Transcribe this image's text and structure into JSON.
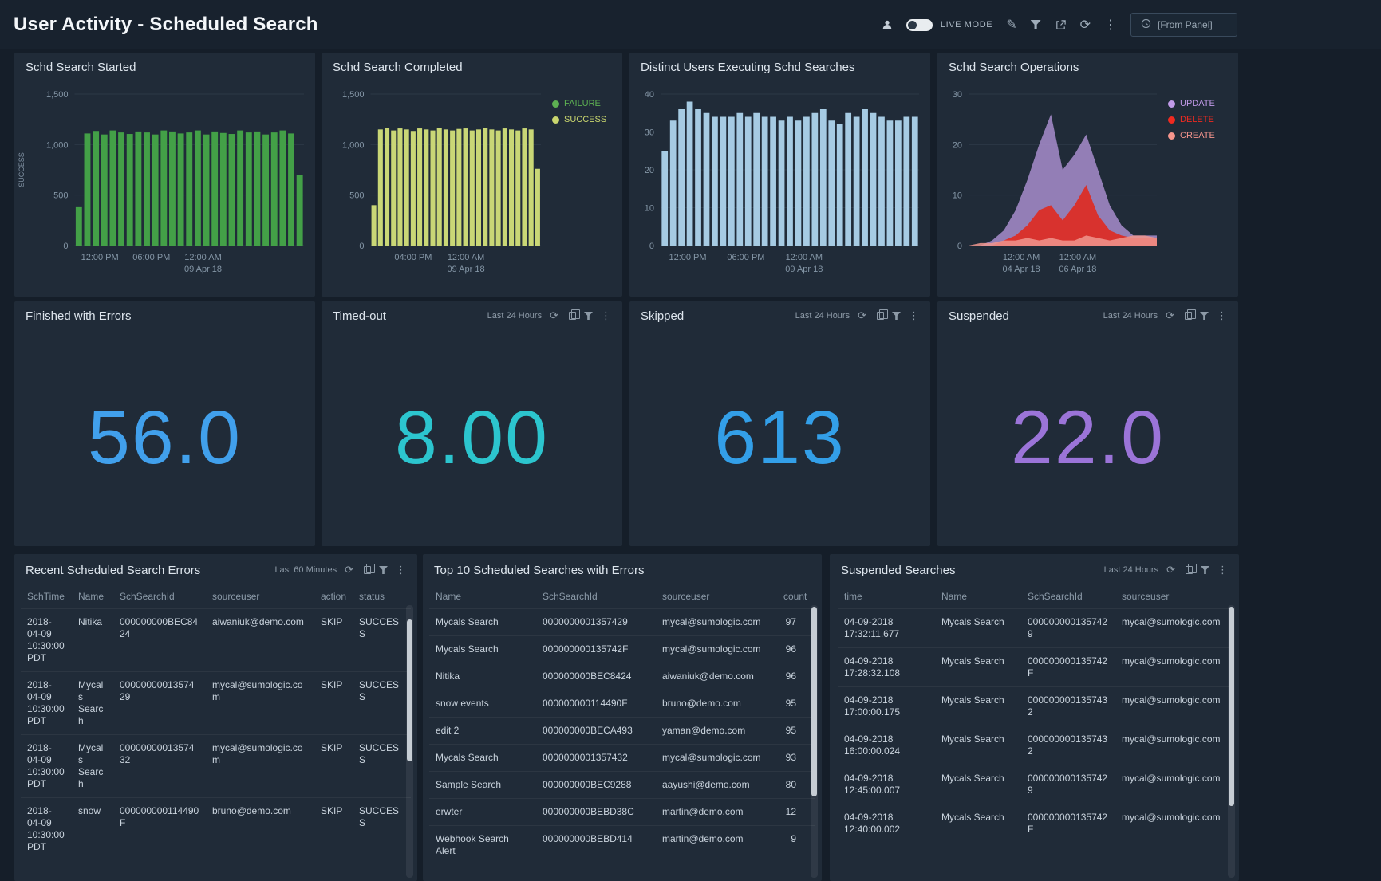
{
  "header": {
    "title": "User Activity - Scheduled Search",
    "live_mode_label": "LIVE MODE",
    "panel_selector": "[From Panel]"
  },
  "stats": [
    {
      "title": "Finished with Errors",
      "value": "56.0",
      "color": "#41a0ec"
    },
    {
      "title": "Timed-out",
      "value": "8.00",
      "color": "#2cc5ce",
      "range": "Last 24 Hours"
    },
    {
      "title": "Skipped",
      "value": "613",
      "color": "#339fe8",
      "range": "Last 24 Hours"
    },
    {
      "title": "Suspended",
      "value": "22.0",
      "color": "#9b74d8",
      "range": "Last 24 Hours"
    }
  ],
  "chart_data": [
    {
      "type": "bar",
      "title": "Schd Search Started",
      "ylabel": "SUCCESS",
      "ylim": [
        0,
        1500
      ],
      "yticks": [
        0,
        500,
        1000,
        1500
      ],
      "ytick_labels": [
        "0",
        "500",
        "1,000",
        "1,500"
      ],
      "bar_color": "#43a047",
      "values": [
        380,
        1110,
        1135,
        1100,
        1140,
        1120,
        1105,
        1130,
        1120,
        1100,
        1140,
        1130,
        1110,
        1120,
        1140,
        1100,
        1130,
        1115,
        1105,
        1140,
        1120,
        1130,
        1100,
        1120,
        1140,
        1110,
        700
      ],
      "xticks": [
        {
          "label": "12:00 PM",
          "pos": 0.11
        },
        {
          "label": "06:00 PM",
          "pos": 0.335
        },
        {
          "label": "12:00 AM",
          "sublabel": "09 Apr 18",
          "pos": 0.56
        }
      ]
    },
    {
      "type": "bar",
      "title": "Schd Search Completed",
      "ylim": [
        0,
        1500
      ],
      "yticks": [
        0,
        500,
        1000,
        1500
      ],
      "ytick_labels": [
        "0",
        "500",
        "1,000",
        "1,500"
      ],
      "bar_color": "#c9d776",
      "values": [
        400,
        1150,
        1165,
        1140,
        1160,
        1150,
        1135,
        1160,
        1150,
        1140,
        1165,
        1150,
        1140,
        1155,
        1160,
        1140,
        1150,
        1165,
        1150,
        1140,
        1160,
        1150,
        1140,
        1160,
        1150,
        760
      ],
      "legend": [
        {
          "label": "FAILURE",
          "color": "#5db052"
        },
        {
          "label": "SUCCESS",
          "color": "#c9d66e"
        }
      ],
      "xticks": [
        {
          "label": "04:00 PM",
          "pos": 0.25
        },
        {
          "label": "12:00 AM",
          "sublabel": "09 Apr 18",
          "pos": 0.56
        }
      ]
    },
    {
      "type": "bar",
      "title": "Distinct Users Executing Schd Searches",
      "ylim": [
        0,
        40
      ],
      "yticks": [
        0,
        10,
        20,
        30,
        40
      ],
      "ytick_labels": [
        "0",
        "10",
        "20",
        "30",
        "40"
      ],
      "bar_color": "#a6cbe3",
      "values": [
        25,
        33,
        36,
        38,
        36,
        35,
        34,
        34,
        34,
        35,
        34,
        35,
        34,
        34,
        33,
        34,
        33,
        34,
        35,
        36,
        33,
        32,
        35,
        34,
        36,
        35,
        34,
        33,
        33,
        34,
        34
      ],
      "xticks": [
        {
          "label": "12:00 PM",
          "pos": 0.105
        },
        {
          "label": "06:00 PM",
          "pos": 0.33
        },
        {
          "label": "12:00 AM",
          "sublabel": "09 Apr 18",
          "pos": 0.555
        }
      ]
    },
    {
      "type": "area",
      "title": "Schd Search Operations",
      "ylim": [
        0,
        30
      ],
      "yticks": [
        0,
        10,
        20,
        30
      ],
      "ytick_labels": [
        "0",
        "10",
        "20",
        "30"
      ],
      "legend": [
        {
          "label": "UPDATE",
          "color": "#c09ae8"
        },
        {
          "label": "DELETE",
          "color": "#f02a20"
        },
        {
          "label": "CREATE",
          "color": "#f5958d"
        }
      ],
      "series": [
        {
          "name": "UPDATE",
          "color": "#b094d6",
          "opacity": 0.8,
          "values": [
            0,
            0,
            1,
            3,
            7,
            13,
            20,
            26,
            15,
            18,
            22,
            15,
            8,
            4,
            2,
            2,
            2
          ]
        },
        {
          "name": "DELETE",
          "color": "#e02a1f",
          "opacity": 0.9,
          "values": [
            0,
            0,
            0,
            1,
            2,
            4,
            7,
            8,
            5,
            8,
            12,
            6,
            3,
            2,
            1.5,
            1.5,
            1.5
          ]
        },
        {
          "name": "CREATE",
          "color": "#f0968e",
          "opacity": 0.85,
          "values": [
            0,
            0.5,
            0.5,
            1,
            1,
            1.5,
            1,
            1.5,
            1,
            1,
            2,
            1.5,
            1,
            1.5,
            2,
            2,
            1.5
          ]
        }
      ],
      "xticks": [
        {
          "label": "12:00 AM",
          "sublabel": "04 Apr 18",
          "pos": 0.28
        },
        {
          "label": "12:00 AM",
          "sublabel": "06 Apr 18",
          "pos": 0.58
        }
      ]
    }
  ],
  "tables": [
    {
      "title": "Recent Scheduled Search Errors",
      "range": "Last 60 Minutes",
      "columns": [
        "SchTime",
        "Name",
        "SchSearchId",
        "sourceuser",
        "action",
        "status"
      ],
      "rows": [
        [
          "2018-04-09 10:30:00 PDT",
          "Nitika",
          "000000000BEC8424",
          "aiwaniuk@demo.com",
          "SKIP",
          "SUCCESS"
        ],
        [
          "2018-04-09 10:30:00 PDT",
          "Mycals Search",
          "0000000001357429",
          "mycal@sumologic.com",
          "SKIP",
          "SUCCESS"
        ],
        [
          "2018-04-09 10:30:00 PDT",
          "Mycals Search",
          "0000000001357432",
          "mycal@sumologic.com",
          "SKIP",
          "SUCCESS"
        ],
        [
          "2018-04-09 10:30:00 PDT",
          "snow",
          "000000000114490F",
          "bruno@demo.com",
          "SKIP",
          "SUCCESS"
        ]
      ]
    },
    {
      "title": "Top 10 Scheduled Searches with Errors",
      "columns": [
        "Name",
        "SchSearchId",
        "sourceuser",
        "count"
      ],
      "rows": [
        [
          "Mycals Search",
          "0000000001357429",
          "mycal@sumologic.com",
          97
        ],
        [
          "Mycals Search",
          "000000000135742F",
          "mycal@sumologic.com",
          96
        ],
        [
          "Nitika",
          "000000000BEC8424",
          "aiwaniuk@demo.com",
          96
        ],
        [
          "snow events",
          "000000000114490F",
          "bruno@demo.com",
          95
        ],
        [
          "edit 2",
          "000000000BECA493",
          "yaman@demo.com",
          95
        ],
        [
          "Mycals Search",
          "0000000001357432",
          "mycal@sumologic.com",
          93
        ],
        [
          "Sample Search",
          "000000000BEC9288",
          "aayushi@demo.com",
          80
        ],
        [
          "erwter",
          "000000000BEBD38C",
          "martin@demo.com",
          12
        ],
        [
          "Webhook Search Alert",
          "000000000BEBD414",
          "martin@demo.com",
          9
        ]
      ]
    },
    {
      "title": "Suspended Searches",
      "range": "Last 24 Hours",
      "columns": [
        "time",
        "Name",
        "SchSearchId",
        "sourceuser"
      ],
      "rows": [
        [
          "04-09-2018 17:32:11.677",
          "Mycals Search",
          "0000000001357429",
          "mycal@sumologic.com"
        ],
        [
          "04-09-2018 17:28:32.108",
          "Mycals Search",
          "000000000135742F",
          "mycal@sumologic.com"
        ],
        [
          "04-09-2018 17:00:00.175",
          "Mycals Search",
          "0000000001357432",
          "mycal@sumologic.com"
        ],
        [
          "04-09-2018 16:00:00.024",
          "Mycals Search",
          "0000000001357432",
          "mycal@sumologic.com"
        ],
        [
          "04-09-2018 12:45:00.007",
          "Mycals Search",
          "0000000001357429",
          "mycal@sumologic.com"
        ],
        [
          "04-09-2018 12:40:00.002",
          "Mycals Search",
          "000000000135742F",
          "mycal@sumologic.com"
        ]
      ]
    }
  ]
}
